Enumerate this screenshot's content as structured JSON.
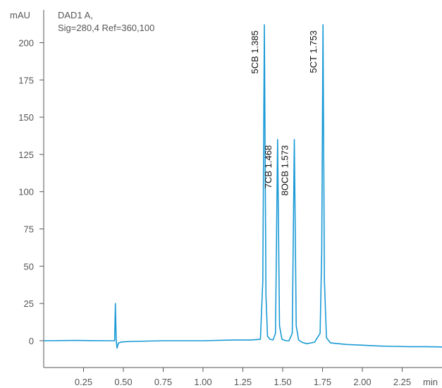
{
  "chart_data": {
    "type": "line",
    "title": "DAD1 A,",
    "subtitle": "Sig=280,4 Ref=360,100",
    "xlabel": "min",
    "ylabel": "mAU",
    "xlim": [
      0.0,
      2.5
    ],
    "ylim": [
      -18,
      222
    ],
    "x_ticks": [
      0.25,
      0.5,
      0.75,
      1.0,
      1.25,
      1.5,
      1.75,
      2.0,
      2.25
    ],
    "x_tick_labels": [
      "0.25",
      "0.50",
      "0.75",
      "1.00",
      "1.25",
      "1.50",
      "1.75",
      "2.00",
      "2.25"
    ],
    "y_ticks": [
      0,
      25,
      50,
      75,
      100,
      125,
      150,
      175,
      200
    ],
    "y_tick_labels": [
      "0",
      "25",
      "50",
      "75",
      "100",
      "125",
      "150",
      "175",
      "200"
    ],
    "grid": false,
    "series": [
      {
        "color": "#1a9ad6",
        "x": [
          0.0,
          0.2,
          0.4,
          0.445,
          0.45,
          0.455,
          0.46,
          0.465,
          0.47,
          0.49,
          0.55,
          0.75,
          1.0,
          1.2,
          1.3,
          1.36,
          1.375,
          1.385,
          1.395,
          1.405,
          1.42,
          1.44,
          1.455,
          1.468,
          1.48,
          1.495,
          1.52,
          1.54,
          1.56,
          1.573,
          1.585,
          1.6,
          1.62,
          1.65,
          1.7,
          1.735,
          1.745,
          1.753,
          1.762,
          1.775,
          1.8,
          1.9,
          2.0,
          2.1,
          2.2,
          2.3,
          2.4,
          2.5
        ],
        "y": [
          0,
          0.2,
          0,
          0,
          25,
          1,
          -5,
          -3,
          -1.5,
          -0.8,
          -0.5,
          0,
          0,
          0.5,
          0.5,
          1,
          40,
          212,
          30,
          3,
          1,
          0.5,
          5,
          135,
          10,
          1,
          0,
          0,
          5,
          135,
          10,
          0.5,
          -1,
          -2,
          -1,
          5,
          60,
          212,
          40,
          2,
          -1.5,
          -2.5,
          -3,
          -3.5,
          -3.8,
          -4,
          -4,
          -4.2
        ]
      }
    ],
    "annotations": [
      {
        "text": "5CB 1.385",
        "x": 1.385
      },
      {
        "text": "7CB 1.468",
        "x": 1.468
      },
      {
        "text": "8OCB 1.573",
        "x": 1.573
      },
      {
        "text": "5CT 1.753",
        "x": 1.753
      }
    ]
  }
}
